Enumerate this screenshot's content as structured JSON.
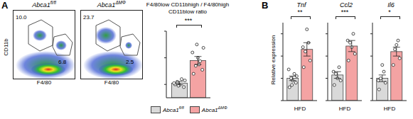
{
  "panel_labels": [
    "A",
    "B"
  ],
  "flow_plots": {
    "x_label": "F4/80",
    "y_label": "CD11b",
    "plots": [
      {
        "title": "Abca1fl/fl",
        "gates": [
          "10.0",
          "6.8"
        ]
      },
      {
        "title": "Abca1ΔMΦ",
        "gates": [
          "23.7",
          "2.5"
        ]
      }
    ]
  },
  "chart_data": [
    {
      "type": "bar",
      "title": "F4/80low CD11bhigh / F4/80high CD11blow ratio",
      "categories": [
        null
      ],
      "series": [
        {
          "name": "Abca1fl/fl",
          "color": "#d9d9d9",
          "values": [
            2.2
          ],
          "errors": [
            0.25
          ],
          "points": [
            [
              2.0,
              1.6,
              2.4,
              2.8,
              1.9,
              2.2,
              2.6,
              1.8
            ]
          ]
        },
        {
          "name": "Abca1ΔMΦ",
          "color": "#f4a3a3",
          "values": [
            5.6
          ],
          "errors": [
            0.6
          ],
          "points": [
            [
              3.6,
              4.2,
              4.8,
              5.5,
              6.0,
              6.8,
              7.5,
              8.0,
              5.0
            ]
          ]
        }
      ],
      "ylim": [
        0,
        10
      ],
      "yticks": [
        0,
        2,
        4,
        6,
        8,
        10
      ],
      "tick_labels": false,
      "annotations": [
        "***"
      ]
    },
    {
      "type": "bar",
      "title": "Tnf",
      "ylabel": "Relative expression",
      "categories": [
        "HFD"
      ],
      "series": [
        {
          "name": "Abca1fl/fl",
          "color": "#d9d9d9",
          "values": [
            1.0
          ],
          "errors": [
            0.1
          ],
          "points": [
            [
              0.6,
              0.8,
              1.0,
              1.2,
              0.9,
              1.4,
              1.1,
              0.7
            ]
          ]
        },
        {
          "name": "Abca1ΔMΦ",
          "color": "#f4a3a3",
          "values": [
            2.3
          ],
          "errors": [
            0.3
          ],
          "points": [
            [
              1.5,
              1.8,
              2.2,
              2.6,
              3.2,
              2.4
            ]
          ]
        }
      ],
      "ylim": [
        0,
        3.5
      ],
      "yticks": [
        0,
        1,
        2,
        3
      ],
      "tick_labels": "x",
      "annotations": [
        "**"
      ]
    },
    {
      "type": "bar",
      "title": "Ccl2",
      "categories": [
        "HFD"
      ],
      "series": [
        {
          "name": "Abca1fl/fl",
          "color": "#d9d9d9",
          "values": [
            1.15
          ],
          "errors": [
            0.15
          ],
          "points": [
            [
              0.7,
              0.9,
              1.2,
              1.5,
              1.0,
              1.3
            ]
          ]
        },
        {
          "name": "Abca1ΔMΦ",
          "color": "#f4a3a3",
          "values": [
            2.45
          ],
          "errors": [
            0.25
          ],
          "points": [
            [
              1.8,
              2.1,
              2.6,
              3.0,
              2.4,
              2.7
            ]
          ]
        }
      ],
      "ylim": [
        0,
        3.5
      ],
      "yticks": [
        0,
        1,
        2,
        3
      ],
      "tick_labels": "x",
      "annotations": [
        "***"
      ]
    },
    {
      "type": "bar",
      "title": "Il6",
      "categories": [
        "HFD"
      ],
      "series": [
        {
          "name": "Abca1fl/fl",
          "color": "#d9d9d9",
          "values": [
            1.0
          ],
          "errors": [
            0.15
          ],
          "points": [
            [
              0.5,
              0.8,
              1.0,
              1.3,
              1.6,
              0.9
            ]
          ]
        },
        {
          "name": "Abca1ΔMΦ",
          "color": "#f4a3a3",
          "values": [
            2.2
          ],
          "errors": [
            0.2
          ],
          "points": [
            [
              1.6,
              1.9,
              2.3,
              2.7,
              2.5
            ]
          ]
        }
      ],
      "ylim": [
        0,
        3.5
      ],
      "yticks": [
        0,
        1,
        2,
        3
      ],
      "tick_labels": "x",
      "annotations": [
        "*"
      ]
    }
  ]
}
